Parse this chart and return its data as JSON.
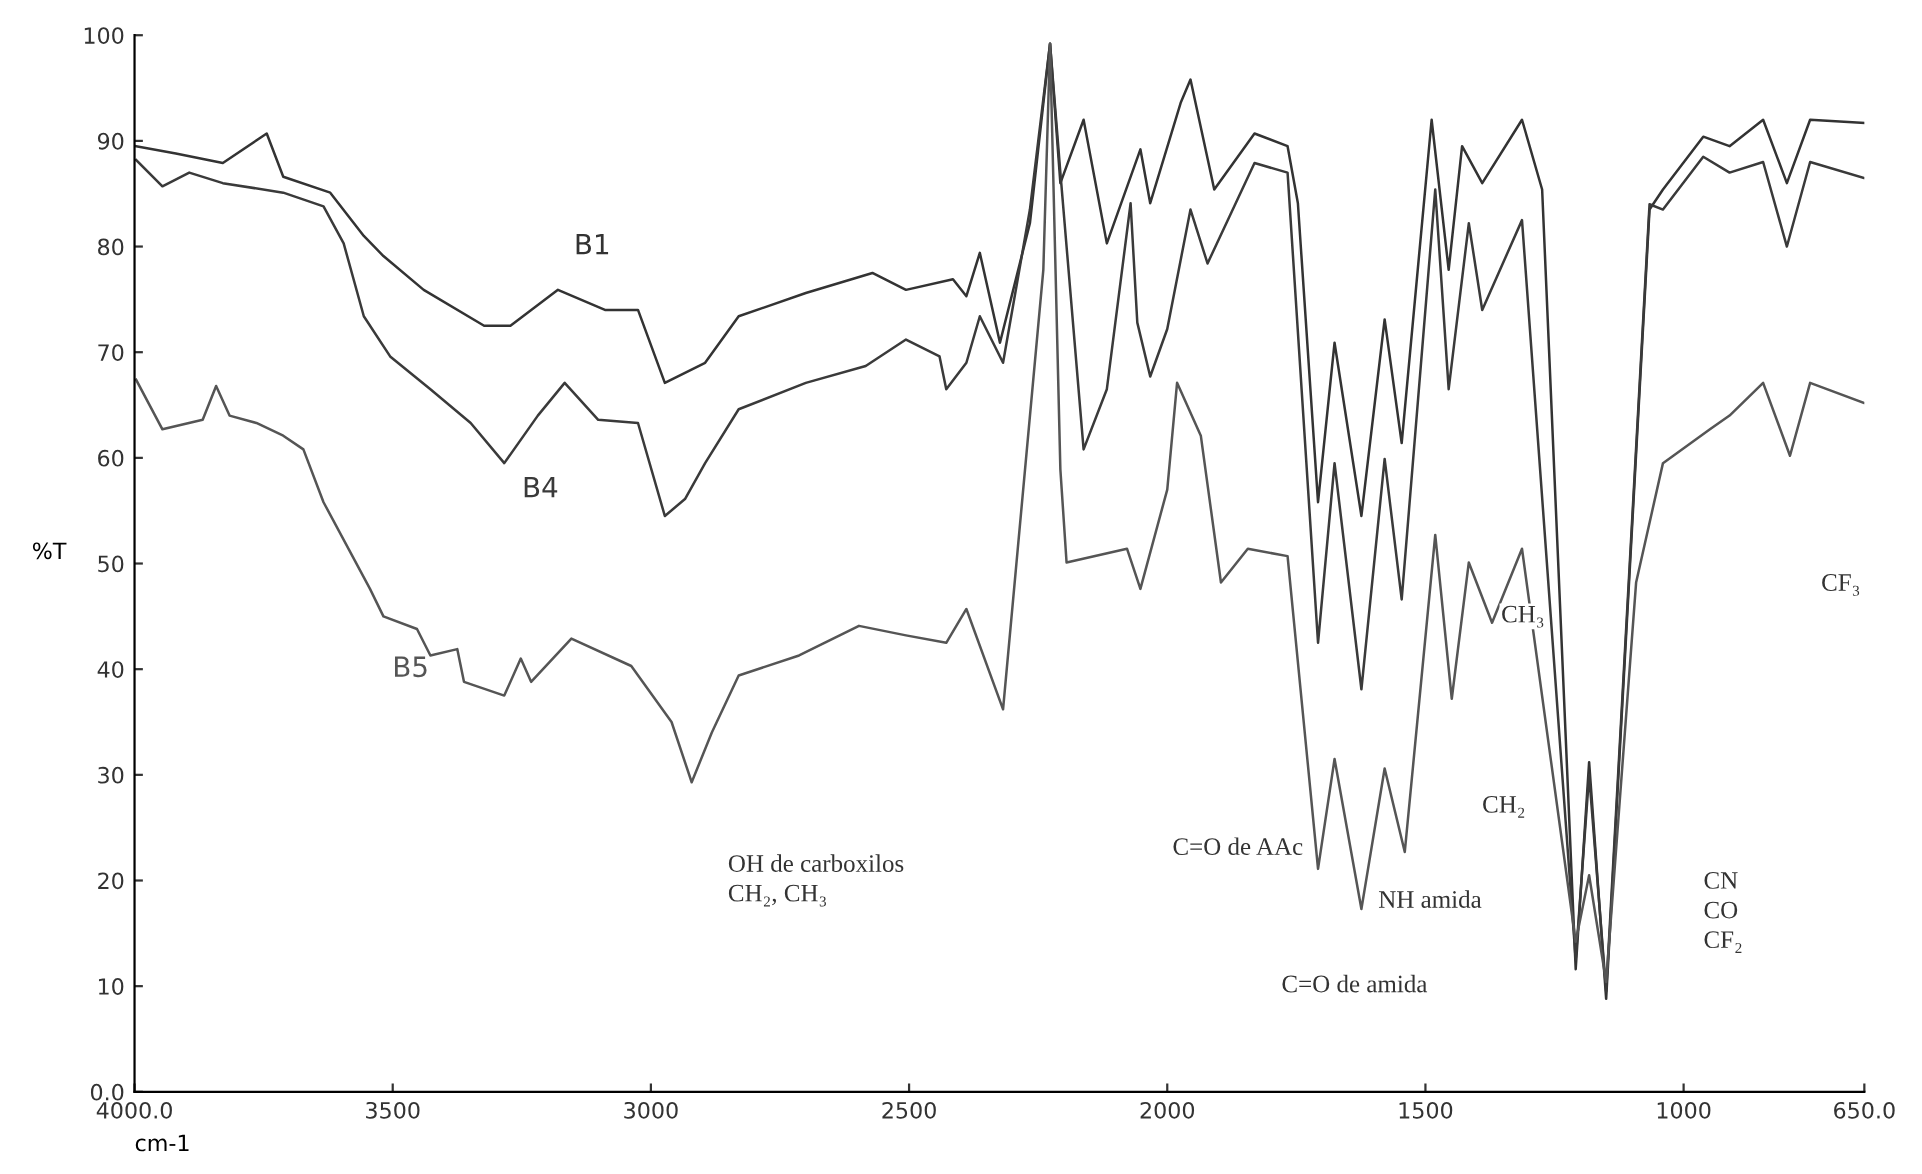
{
  "chart_data": {
    "type": "line",
    "xlabel": "cm-1",
    "ylabel": "%T",
    "xlim": [
      4000,
      650
    ],
    "ylim": [
      0,
      100
    ],
    "xticks": [
      {
        "value": 4000,
        "label": "4000.0"
      },
      3500,
      3000,
      2500,
      2000,
      1500,
      1000,
      {
        "value": 650,
        "label": "650.0"
      }
    ],
    "yticks": [
      {
        "value": 0,
        "label": "0.0"
      },
      10,
      20,
      30,
      40,
      50,
      60,
      70,
      80,
      90,
      100
    ],
    "grid": false,
    "legend": false,
    "marker": "none",
    "line_style": "solid",
    "series": [
      {
        "name": "B1",
        "color": "#333333",
        "x": [
          3997,
          3920,
          3829,
          3744,
          3712,
          3621,
          3556,
          3518,
          3440,
          3323,
          3272,
          3180,
          3089,
          3025,
          2973,
          2895,
          2830,
          2700,
          2571,
          2506,
          2415,
          2389,
          2363,
          2324,
          2266,
          2227,
          2207,
          2162,
          2117,
          2052,
          2033,
          1974,
          1955,
          1909,
          1831,
          1767,
          1747,
          1708,
          1676,
          1624,
          1579,
          1546,
          1488,
          1455,
          1429,
          1390,
          1313,
          1274,
          1209,
          1183,
          1150,
          1066,
          1040,
          962,
          911,
          846,
          800,
          755,
          651
        ],
        "values": [
          89.5,
          88.8,
          87.9,
          90.7,
          86.6,
          85.1,
          81.0,
          79.1,
          75.9,
          72.5,
          72.5,
          75.9,
          74.0,
          74.0,
          67.1,
          69.0,
          73.4,
          75.6,
          77.5,
          75.9,
          76.9,
          75.3,
          79.4,
          70.9,
          82.2,
          99.2,
          86.0,
          92.0,
          80.3,
          89.2,
          84.1,
          93.6,
          95.8,
          85.4,
          90.7,
          89.5,
          84.1,
          55.8,
          70.9,
          54.5,
          73.1,
          61.4,
          92.0,
          77.8,
          89.5,
          86.0,
          92.0,
          85.4,
          11.6,
          31.2,
          8.8,
          83.5,
          85.4,
          90.4,
          89.5,
          92.0,
          86.0,
          92.0,
          91.7
        ]
      },
      {
        "name": "B4",
        "color": "#3a3a3a",
        "x": [
          3997,
          3946,
          3894,
          3829,
          3712,
          3634,
          3595,
          3556,
          3505,
          3427,
          3349,
          3284,
          3219,
          3167,
          3102,
          3025,
          2973,
          2934,
          2895,
          2830,
          2700,
          2584,
          2506,
          2441,
          2428,
          2389,
          2363,
          2318,
          2266,
          2227,
          2207,
          2162,
          2117,
          2071,
          2058,
          2033,
          2000,
          1955,
          1922,
          1831,
          1767,
          1708,
          1676,
          1624,
          1579,
          1546,
          1481,
          1455,
          1416,
          1390,
          1313,
          1209,
          1183,
          1150,
          1066,
          1040,
          962,
          911,
          846,
          800,
          755,
          651
        ],
        "values": [
          88.2,
          85.7,
          87.0,
          86.0,
          85.1,
          83.8,
          80.3,
          73.4,
          69.6,
          66.5,
          63.3,
          59.5,
          64.0,
          67.1,
          63.6,
          63.3,
          54.5,
          56.1,
          59.5,
          64.6,
          67.1,
          68.7,
          71.2,
          69.6,
          66.5,
          69.0,
          73.4,
          69.0,
          83.5,
          99.2,
          87.0,
          60.8,
          66.5,
          84.1,
          72.8,
          67.7,
          72.2,
          83.5,
          78.4,
          87.9,
          87.0,
          42.5,
          59.5,
          38.1,
          59.9,
          46.6,
          85.4,
          66.5,
          82.2,
          74.0,
          82.5,
          12.5,
          30.0,
          9.5,
          84.0,
          83.5,
          88.5,
          87.0,
          88.0,
          80.0,
          88.0,
          86.5
        ]
      },
      {
        "name": "B5",
        "color": "#555555",
        "x": [
          3997,
          3946,
          3868,
          3842,
          3816,
          3764,
          3712,
          3673,
          3634,
          3544,
          3518,
          3453,
          3427,
          3375,
          3362,
          3284,
          3252,
          3232,
          3154,
          3038,
          2960,
          2921,
          2882,
          2830,
          2713,
          2597,
          2506,
          2428,
          2389,
          2318,
          2240,
          2227,
          2207,
          2195,
          2078,
          2052,
          2000,
          1981,
          1935,
          1896,
          1844,
          1767,
          1708,
          1676,
          1624,
          1579,
          1540,
          1481,
          1449,
          1416,
          1371,
          1313,
          1209,
          1183,
          1150,
          1092,
          1040,
          949,
          911,
          846,
          794,
          755,
          651
        ],
        "values": [
          67.4,
          62.7,
          63.6,
          66.8,
          64.0,
          63.3,
          62.1,
          60.8,
          55.8,
          47.6,
          45.0,
          43.8,
          41.3,
          41.9,
          38.8,
          37.5,
          41.0,
          38.8,
          42.9,
          40.3,
          35.0,
          29.3,
          34.0,
          39.4,
          41.3,
          44.1,
          43.2,
          42.5,
          45.7,
          36.2,
          77.8,
          99.2,
          58.9,
          50.1,
          51.4,
          47.6,
          57.0,
          67.1,
          62.1,
          48.2,
          51.4,
          50.7,
          21.1,
          31.5,
          17.3,
          30.6,
          22.7,
          52.7,
          37.2,
          50.1,
          44.4,
          51.4,
          14.2,
          20.5,
          10.4,
          48.2,
          59.5,
          62.7,
          64.0,
          67.1,
          60.2,
          67.1,
          65.2
        ]
      }
    ],
    "annotations": [
      "OH de carboxilos\nCH₂, CH₃",
      "C=O de AAc",
      "NH amida",
      "C=O de amida",
      "CH₃",
      "CH₂",
      "CN\nCO\nCF₂",
      "CF₃"
    ]
  }
}
